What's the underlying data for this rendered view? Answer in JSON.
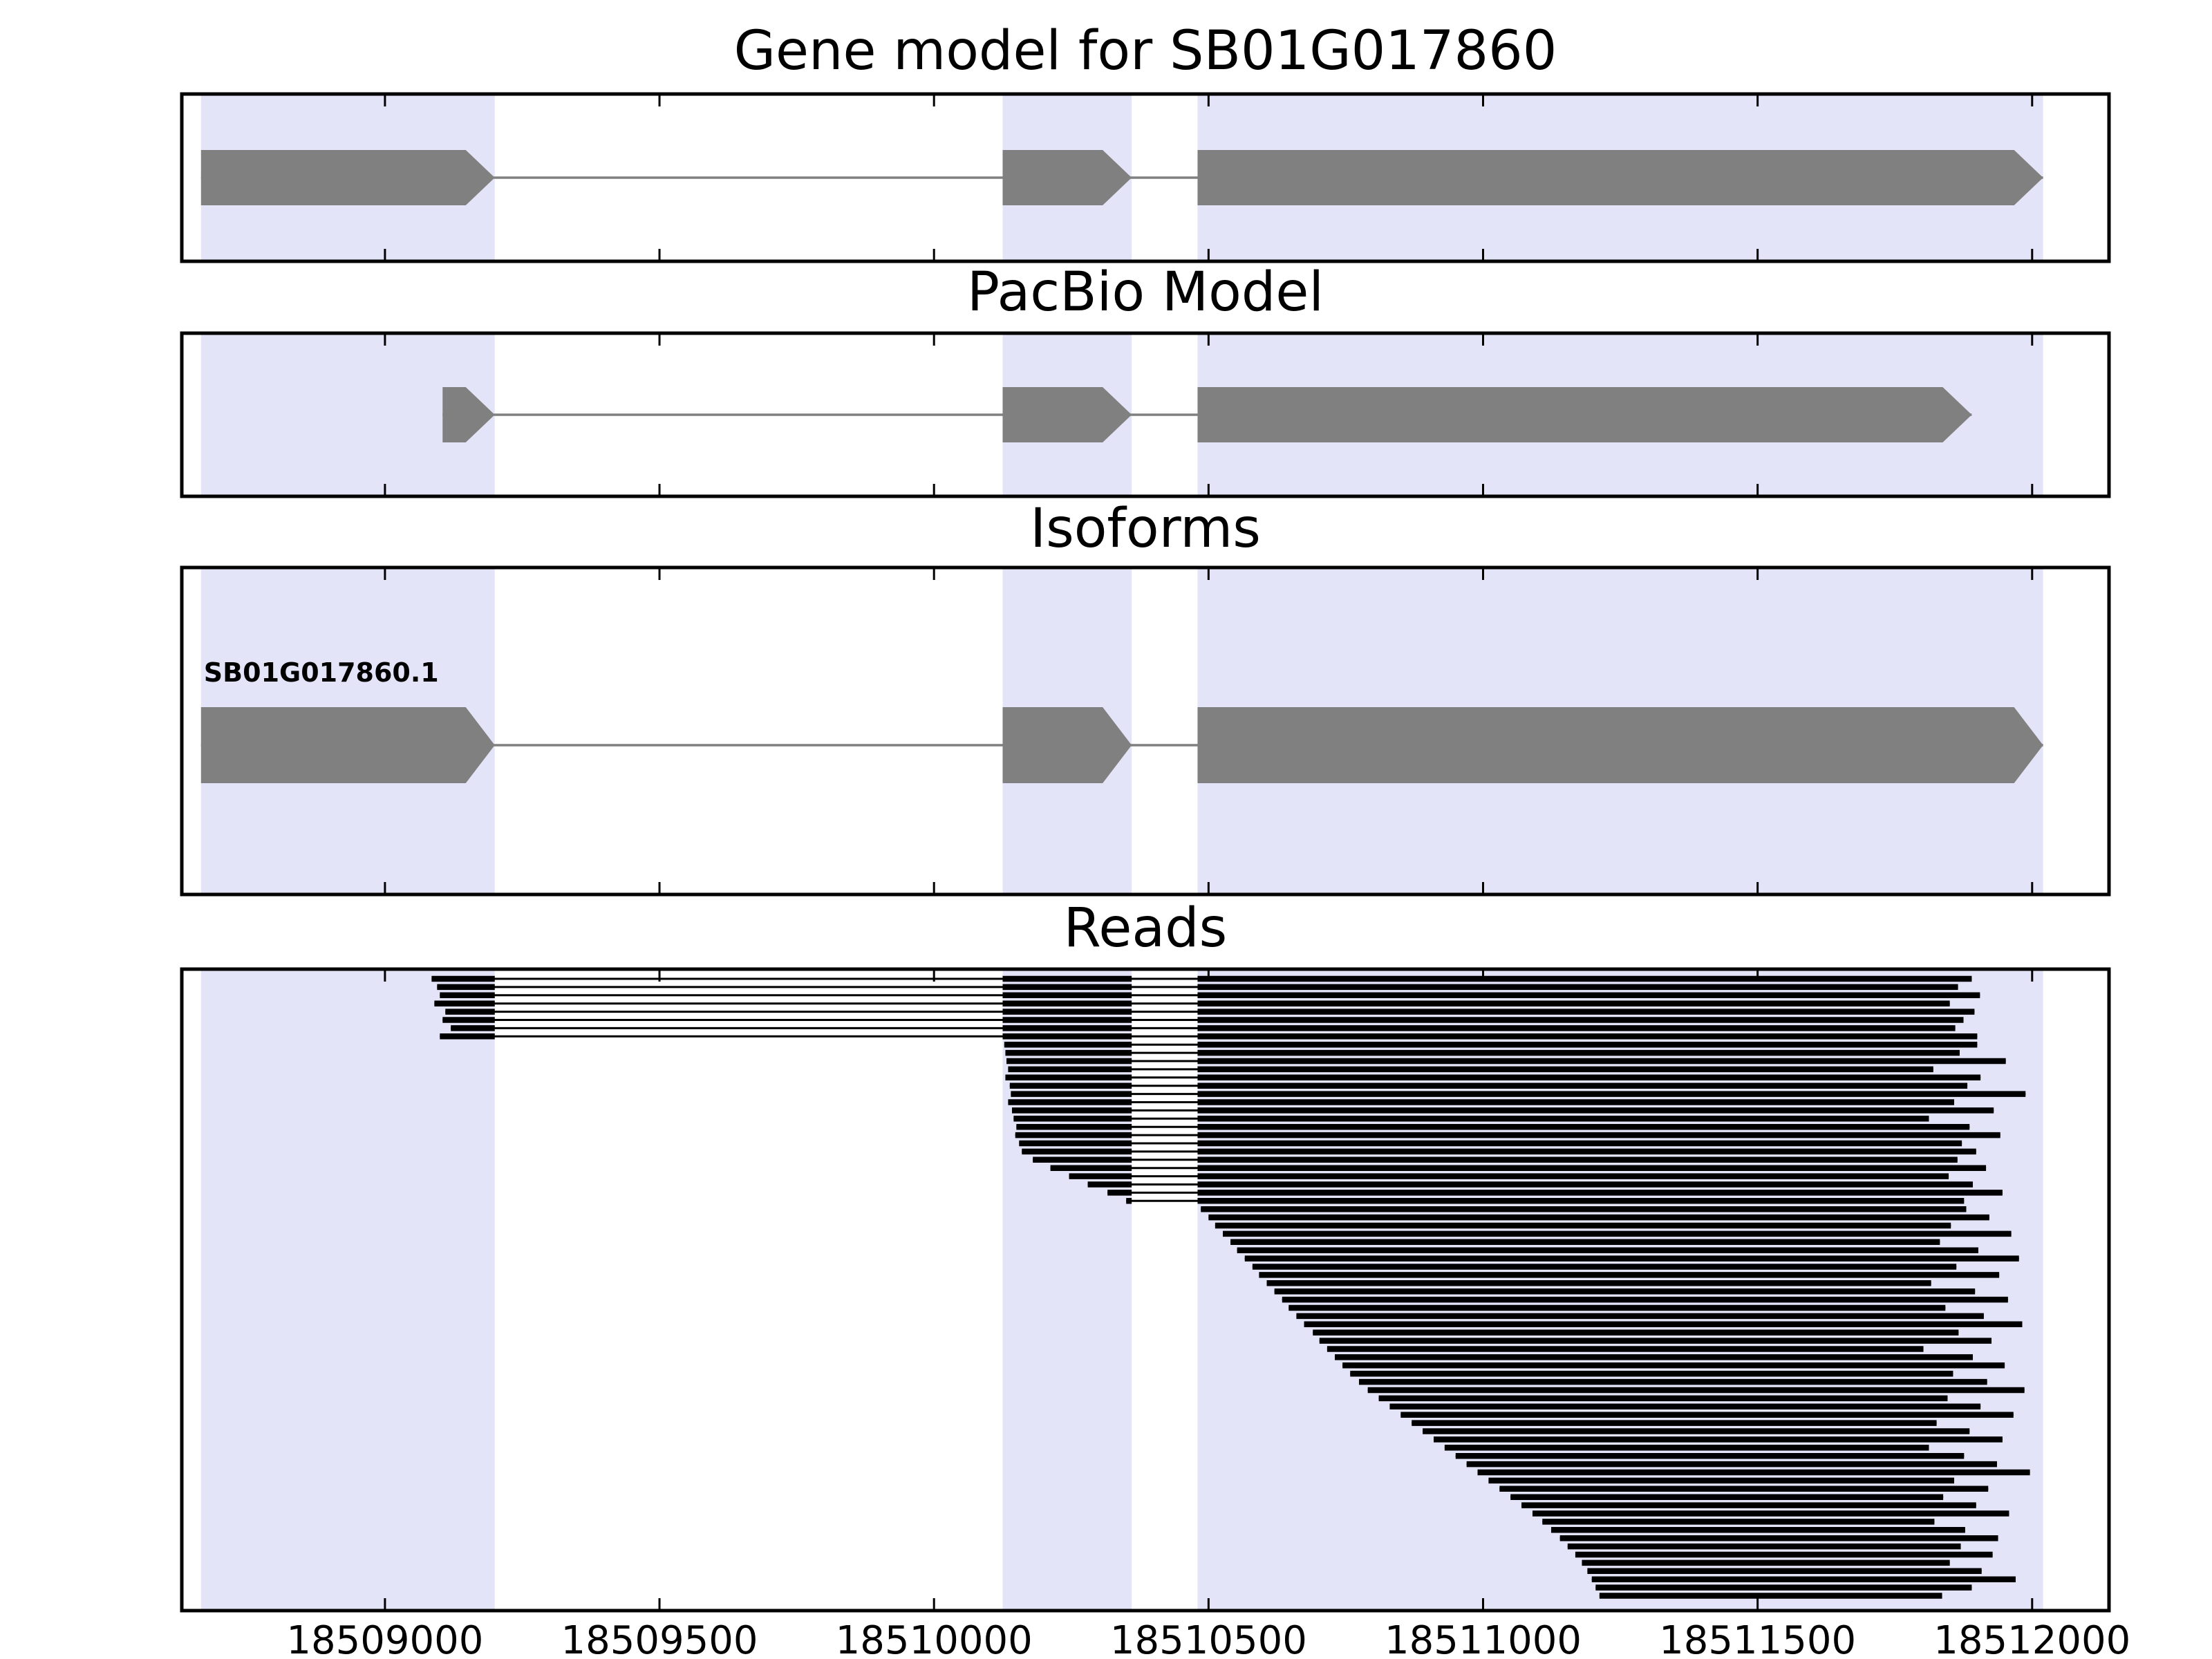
{
  "figure": {
    "background": "#ffffff",
    "highlight_color": "#e4e4f8",
    "exon_color": "#808080",
    "read_color": "#000000"
  },
  "panels": [
    {
      "key": "gene_model",
      "title": "Gene model for SB01G017860"
    },
    {
      "key": "pacbio",
      "title": "PacBio Model"
    },
    {
      "key": "isoforms",
      "title": "Isoforms"
    },
    {
      "key": "reads",
      "title": "Reads"
    }
  ],
  "chart_data": {
    "type": "gene-browser",
    "grid": false,
    "legend": false,
    "xlim": [
      18508630,
      18512140
    ],
    "x_ticks": [
      18509000,
      18509500,
      18510000,
      18510500,
      18511000,
      18511500,
      18512000
    ],
    "highlight_regions": [
      [
        18508665,
        18509200
      ],
      [
        18510125,
        18510360
      ],
      [
        18510480,
        18512020
      ]
    ],
    "gene_model": {
      "name": "SB01G017860",
      "strand": "+",
      "exons": [
        [
          18508665,
          18509200
        ],
        [
          18510125,
          18510360
        ],
        [
          18510480,
          18512020
        ]
      ]
    },
    "pacbio_model": {
      "strand": "+",
      "exons": [
        [
          18509105,
          18509200
        ],
        [
          18510125,
          18510360
        ],
        [
          18510480,
          18511890
        ]
      ]
    },
    "isoforms": [
      {
        "label": "SB01G017860.1",
        "strand": "+",
        "exons": [
          [
            18508665,
            18509200
          ],
          [
            18510125,
            18510360
          ],
          [
            18510480,
            18512020
          ]
        ]
      }
    ],
    "reads": [
      [
        18509085,
        18511890
      ],
      [
        18509095,
        18511865
      ],
      [
        18509100,
        18511905
      ],
      [
        18509090,
        18511850
      ],
      [
        18509110,
        18511895
      ],
      [
        18509105,
        18511875
      ],
      [
        18509120,
        18511860
      ],
      [
        18509100,
        18511900
      ],
      [
        18510128,
        18511900
      ],
      [
        18510130,
        18511868
      ],
      [
        18510132,
        18511952
      ],
      [
        18510135,
        18511820
      ],
      [
        18510130,
        18511906
      ],
      [
        18510138,
        18511882
      ],
      [
        18510140,
        18511988
      ],
      [
        18510135,
        18511858
      ],
      [
        18510142,
        18511930
      ],
      [
        18510145,
        18511812
      ],
      [
        18510150,
        18511886
      ],
      [
        18510148,
        18511942
      ],
      [
        18510155,
        18511872
      ],
      [
        18510160,
        18511898
      ],
      [
        18510180,
        18511864
      ],
      [
        18510212,
        18511916
      ],
      [
        18510246,
        18511848
      ],
      [
        18510280,
        18511892
      ],
      [
        18510316,
        18511946
      ],
      [
        18510350,
        18511876
      ],
      [
        18510486,
        18511880
      ],
      [
        18510500,
        18511922
      ],
      [
        18510512,
        18511852
      ],
      [
        18510526,
        18511962
      ],
      [
        18510540,
        18511832
      ],
      [
        18510552,
        18511902
      ],
      [
        18510566,
        18511976
      ],
      [
        18510580,
        18511862
      ],
      [
        18510592,
        18511940
      ],
      [
        18510606,
        18511816
      ],
      [
        18510620,
        18511896
      ],
      [
        18510634,
        18511956
      ],
      [
        18510646,
        18511842
      ],
      [
        18510660,
        18511912
      ],
      [
        18510674,
        18511982
      ],
      [
        18510690,
        18511866
      ],
      [
        18510702,
        18511926
      ],
      [
        18510716,
        18511802
      ],
      [
        18510730,
        18511892
      ],
      [
        18510744,
        18511950
      ],
      [
        18510758,
        18511856
      ],
      [
        18510774,
        18511918
      ],
      [
        18510790,
        18511986
      ],
      [
        18510810,
        18511846
      ],
      [
        18510830,
        18511906
      ],
      [
        18510850,
        18511966
      ],
      [
        18510870,
        18511826
      ],
      [
        18510890,
        18511886
      ],
      [
        18510910,
        18511946
      ],
      [
        18510930,
        18511812
      ],
      [
        18510950,
        18511876
      ],
      [
        18510970,
        18511936
      ],
      [
        18510990,
        18511996
      ],
      [
        18511010,
        18511858
      ],
      [
        18511030,
        18511920
      ],
      [
        18511050,
        18511838
      ],
      [
        18511070,
        18511898
      ],
      [
        18511090,
        18511958
      ],
      [
        18511108,
        18511822
      ],
      [
        18511124,
        18511878
      ],
      [
        18511140,
        18511938
      ],
      [
        18511154,
        18511870
      ],
      [
        18511168,
        18511928
      ],
      [
        18511180,
        18511850
      ],
      [
        18511190,
        18511908
      ],
      [
        18511198,
        18511970
      ],
      [
        18511205,
        18511890
      ],
      [
        18511212,
        18511836
      ]
    ]
  }
}
